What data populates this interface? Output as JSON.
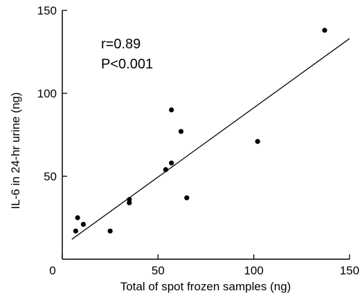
{
  "chart_data": {
    "type": "scatter",
    "xlabel": "Total of spot frozen samples (ng)",
    "ylabel": "IL-6 in 24-hr urine  (ng)",
    "xlim": [
      0,
      150
    ],
    "ylim": [
      0,
      150
    ],
    "xticks": [
      0,
      50,
      100,
      150
    ],
    "yticks": [
      50,
      100,
      150
    ],
    "x_tick_labels": [
      "0",
      "50",
      "100",
      "150"
    ],
    "y_tick_labels": [
      "50",
      "100",
      "150"
    ],
    "grid": false,
    "annotations": [
      "r=0.89",
      "P<0.001"
    ],
    "series": [
      {
        "points": [
          {
            "x": 7,
            "y": 17
          },
          {
            "x": 8,
            "y": 25
          },
          {
            "x": 11,
            "y": 21
          },
          {
            "x": 25,
            "y": 17
          },
          {
            "x": 35,
            "y": 34
          },
          {
            "x": 35,
            "y": 36
          },
          {
            "x": 54,
            "y": 54
          },
          {
            "x": 57,
            "y": 58
          },
          {
            "x": 57,
            "y": 90
          },
          {
            "x": 62,
            "y": 77
          },
          {
            "x": 65,
            "y": 37
          },
          {
            "x": 102,
            "y": 71
          },
          {
            "x": 137,
            "y": 138
          }
        ]
      }
    ],
    "fit_line": {
      "x": [
        5,
        150
      ],
      "y": [
        12,
        133
      ]
    }
  }
}
